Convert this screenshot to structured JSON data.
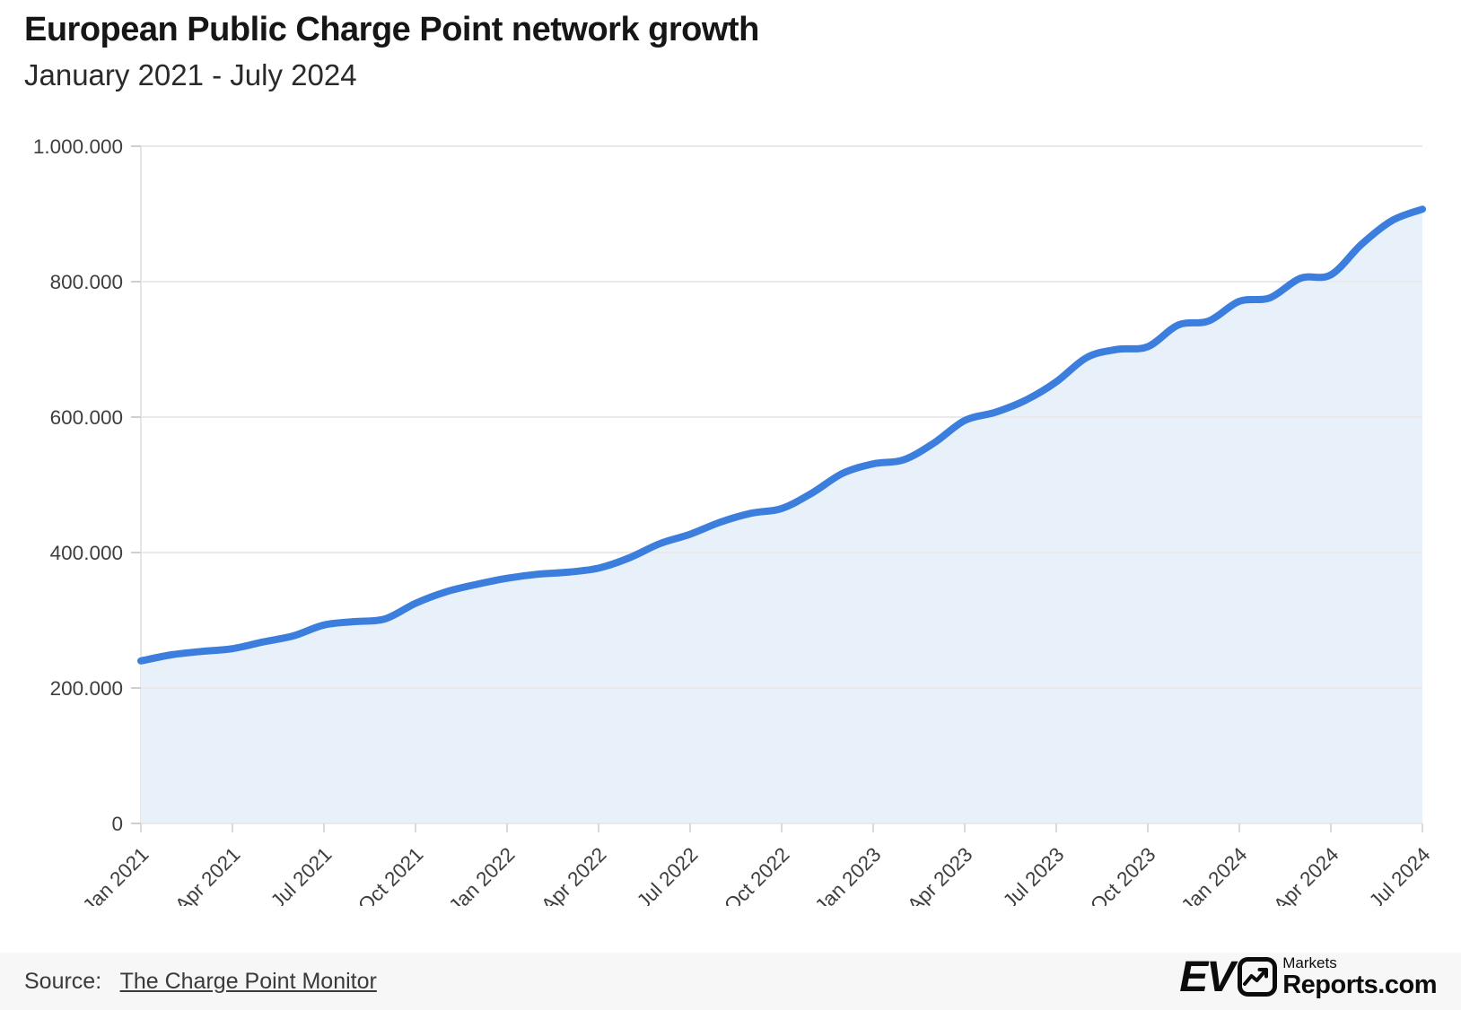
{
  "header": {
    "title": "European Public Charge Point network growth",
    "subtitle": "January 2021 - July 2024"
  },
  "chart_data": {
    "type": "area",
    "title": "European Public Charge Point network growth",
    "subtitle": "January 2021 - July 2024",
    "xlabel": "",
    "ylabel": "",
    "ylim": [
      0,
      1000000
    ],
    "grid": true,
    "legend": "none",
    "line_color": "#3b7edd",
    "fill_color": "#e8f0fa",
    "grid_color": "#e9e9e9",
    "axis_text_color": "#3e3e3e",
    "y_tick_labels": [
      "0",
      "200.000",
      "400.000",
      "600.000",
      "800.000",
      "1.000.000"
    ],
    "x_tick_labels": [
      "Jan 2021",
      "Apr 2021",
      "Jul 2021",
      "Oct 2021",
      "Jan 2022",
      "Apr 2022",
      "Jul 2022",
      "Oct 2022",
      "Jan 2023",
      "Apr 2023",
      "Jul 2023",
      "Oct 2023",
      "Jan 2024",
      "Apr 2024",
      "Jul 2024"
    ],
    "months": [
      "Jan 2021",
      "Feb 2021",
      "Mar 2021",
      "Apr 2021",
      "May 2021",
      "Jun 2021",
      "Jul 2021",
      "Aug 2021",
      "Sep 2021",
      "Oct 2021",
      "Nov 2021",
      "Dec 2021",
      "Jan 2022",
      "Feb 2022",
      "Mar 2022",
      "Apr 2022",
      "May 2022",
      "Jun 2022",
      "Jul 2022",
      "Aug 2022",
      "Sep 2022",
      "Oct 2022",
      "Nov 2022",
      "Dec 2022",
      "Jan 2023",
      "Feb 2023",
      "Mar 2023",
      "Apr 2023",
      "May 2023",
      "Jun 2023",
      "Jul 2023",
      "Aug 2023",
      "Sep 2023",
      "Oct 2023",
      "Nov 2023",
      "Dec 2023",
      "Jan 2024",
      "Feb 2024",
      "Mar 2024",
      "Apr 2024",
      "May 2024",
      "Jun 2024",
      "Jul 2024"
    ],
    "values": [
      240000,
      249000,
      254000,
      258000,
      268000,
      277000,
      293000,
      298000,
      302000,
      325000,
      342000,
      353000,
      362000,
      368000,
      371000,
      377000,
      392000,
      413000,
      427000,
      445000,
      458000,
      465000,
      488000,
      517000,
      531000,
      537000,
      562000,
      595000,
      607000,
      625000,
      652000,
      688000,
      700000,
      704000,
      736000,
      742000,
      771000,
      776000,
      805000,
      810000,
      855000,
      890000,
      907000
    ]
  },
  "footer": {
    "source_prefix": "Source:",
    "source_link": "The Charge Point Monitor",
    "logo": {
      "ev": "EV",
      "markets": "Markets",
      "reports": "Reports.com",
      "icon": "trend-up-chart-icon"
    }
  }
}
